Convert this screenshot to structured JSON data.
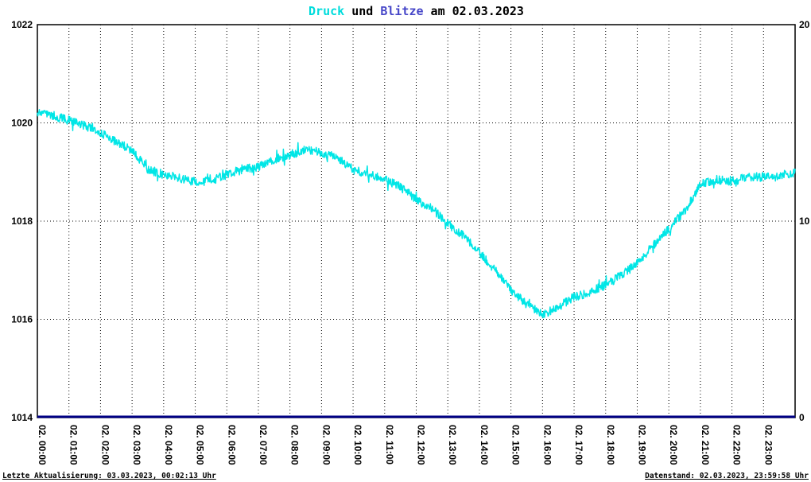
{
  "title": {
    "series1": "Druck",
    "joiner": " und ",
    "series2": "Blitze",
    "suffix": " am 02.03.2023"
  },
  "footer": {
    "left": "Letzte Aktualisierung: 03.03.2023, 00:02:13 Uhr",
    "right": "Datenstand: 02.03.2023, 23:59:58 Uhr"
  },
  "chart_data": {
    "type": "line",
    "title": "Druck und Blitze am 02.03.2023",
    "date": "02.03.2023",
    "grid": {
      "style": "dotted",
      "color": "#000000"
    },
    "x": {
      "unit": "time",
      "start_hour": 0,
      "end_hour": 24,
      "tick_every_hours": 1,
      "tick_labels": [
        "02. 00:00",
        "02. 01:00",
        "02. 02:00",
        "02. 03:00",
        "02. 04:00",
        "02. 05:00",
        "02. 06:00",
        "02. 07:00",
        "02. 08:00",
        "02. 09:00",
        "02. 10:00",
        "02. 11:00",
        "02. 12:00",
        "02. 13:00",
        "02. 14:00",
        "02. 15:00",
        "02. 16:00",
        "02. 17:00",
        "02. 18:00",
        "02. 19:00",
        "02. 20:00",
        "02. 21:00",
        "02. 22:00",
        "02. 23:00"
      ]
    },
    "left_axis": {
      "min": 1014,
      "max": 1022,
      "tick_values": [
        1014,
        1016,
        1018,
        1020,
        1022
      ],
      "tick_labels": [
        "1014",
        "1016",
        "1018",
        "1020",
        "1022"
      ]
    },
    "right_axis": {
      "min": 0,
      "max": 20,
      "tick_values": [
        0,
        10,
        20
      ],
      "tick_labels": [
        "0",
        "10",
        "20"
      ]
    },
    "series": [
      {
        "name": "Druck",
        "axis": "left",
        "color": "#00e6e6",
        "label_color": "#00dcdc",
        "sample_interval_hours": 0.5,
        "noise_amplitude_hpa": 0.09,
        "values": [
          1020.2,
          1020.15,
          1020.05,
          1019.95,
          1019.8,
          1019.6,
          1019.45,
          1019.05,
          1018.95,
          1018.88,
          1018.8,
          1018.82,
          1018.95,
          1019.05,
          1019.1,
          1019.25,
          1019.35,
          1019.45,
          1019.4,
          1019.3,
          1019.05,
          1018.95,
          1018.85,
          1018.7,
          1018.45,
          1018.25,
          1017.95,
          1017.7,
          1017.35,
          1017.0,
          1016.6,
          1016.3,
          1016.1,
          1016.25,
          1016.45,
          1016.55,
          1016.7,
          1016.9,
          1017.15,
          1017.5,
          1017.85,
          1018.2,
          1018.75,
          1018.85,
          1018.8,
          1018.9,
          1018.9,
          1018.9,
          1019.0
        ]
      },
      {
        "name": "Blitze",
        "axis": "right",
        "color": "#000085",
        "label_color": "#4646c8",
        "constant_value": 0
      }
    ]
  }
}
